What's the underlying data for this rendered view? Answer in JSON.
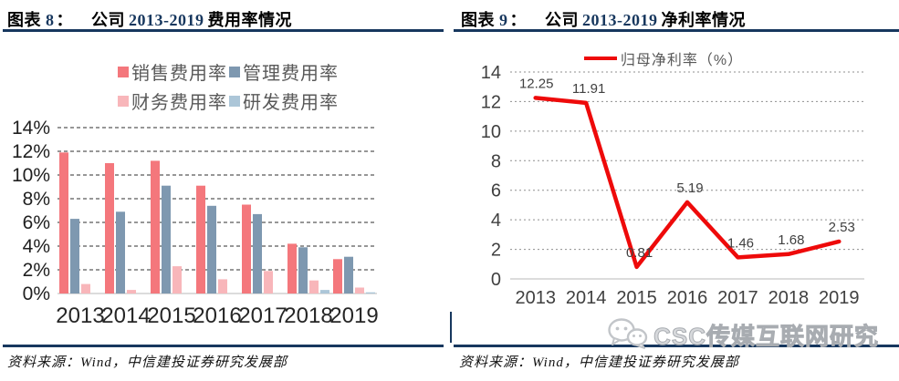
{
  "colors": {
    "navy_rule": "#17375e",
    "sales_bar": "#f4777c",
    "admin_bar": "#7e98b0",
    "finance_bar": "#f8b6ba",
    "rnd_bar": "#acc6d8",
    "net_margin_line": "#ee0a0a",
    "watermark_gray": "#c2c5c9"
  },
  "panels": [
    {
      "title": {
        "fig": "图表",
        "num": "8",
        "colon": "：",
        "pre": "公司",
        "range": "2013-2019",
        "post": "费用率情况"
      },
      "source": "资料来源：Wind，中信建投证券研究发展部"
    },
    {
      "title": {
        "fig": "图表",
        "num": "9",
        "colon": "：",
        "pre": "公司",
        "range": "2013-2019",
        "post": "净利率情况"
      },
      "source": "资料来源：Wind，中信建投证券研究发展部"
    }
  ],
  "watermark": {
    "icon": "wechat-icon",
    "text": "CSC传媒互联网研究"
  },
  "chart_data": [
    {
      "type": "bar",
      "title": "公司 2013-2019 费用率情况",
      "categories": [
        "2013",
        "2014",
        "2015",
        "2016",
        "2017",
        "2018",
        "2019"
      ],
      "series": [
        {
          "name": "销售费用率",
          "color": "#f4777c",
          "values": [
            11.9,
            11.0,
            11.2,
            9.1,
            7.5,
            4.2,
            2.9
          ]
        },
        {
          "name": "管理费用率",
          "color": "#7e98b0",
          "values": [
            6.3,
            6.9,
            9.1,
            7.4,
            6.7,
            3.9,
            3.1
          ]
        },
        {
          "name": "财务费用率",
          "color": "#f8b6ba",
          "values": [
            0.8,
            0.3,
            2.3,
            1.2,
            1.9,
            1.1,
            0.5
          ]
        },
        {
          "name": "研发费用率",
          "color": "#acc6d8",
          "values": [
            0,
            0,
            0,
            0,
            0,
            0.3,
            0.1
          ]
        }
      ],
      "ylim": [
        0,
        14
      ],
      "ytick_step": 2,
      "ytick_suffix": "%",
      "grid": "dashed",
      "legend_position": "top",
      "legend_rows": [
        [
          "销售费用率",
          "管理费用率"
        ],
        [
          "财务费用率",
          "研发费用率"
        ]
      ]
    },
    {
      "type": "line",
      "title": "公司 2013-2019 净利率情况",
      "legend": "归母净利率（%）",
      "categories": [
        "2013",
        "2014",
        "2015",
        "2016",
        "2017",
        "2018",
        "2019"
      ],
      "values": [
        12.25,
        11.91,
        0.81,
        5.19,
        1.46,
        1.68,
        2.53
      ],
      "data_labels": [
        "12.25",
        "11.91",
        "0.81",
        "5.19",
        "1.46",
        "1.68",
        "2.53"
      ],
      "line_color": "#ee0a0a",
      "ylim": [
        0,
        14
      ],
      "ytick_step": 2,
      "grid": "dashed",
      "legend_position": "top"
    }
  ]
}
